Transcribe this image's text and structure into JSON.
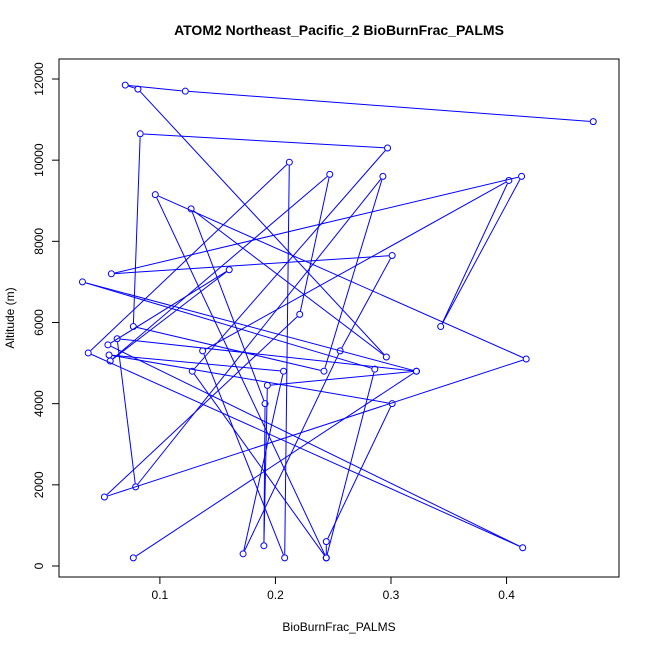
{
  "chart_data": {
    "type": "line",
    "title": "ATOM2 Northeast_Pacific_2 BioBurnFrac_PALMS",
    "xlabel": "BioBurnFrac_PALMS",
    "ylabel": "Altitude (m)",
    "xlim": [
      0.03,
      0.48
    ],
    "ylim": [
      0,
      12000
    ],
    "xticks": [
      "0.1",
      "0.2",
      "0.3",
      "0.4"
    ],
    "yticks": [
      "0",
      "2000",
      "4000",
      "6000",
      "8000",
      "10000",
      "12000"
    ],
    "grid": false,
    "legend": "none",
    "series": [
      {
        "color": "#0000ff",
        "marker": "open-circle",
        "x": [
          0.475,
          0.122,
          0.07,
          0.081,
          0.296,
          0.127,
          0.191,
          0.19,
          0.193,
          0.322,
          0.063,
          0.079,
          0.293,
          0.242,
          0.077,
          0.083,
          0.297,
          0.128,
          0.244,
          0.096,
          0.417,
          0.052,
          0.221,
          0.247,
          0.057,
          0.16,
          0.055,
          0.414,
          0.038,
          0.212,
          0.208,
          0.137,
          0.402,
          0.343,
          0.413,
          0.058,
          0.301,
          0.256,
          0.172,
          0.207,
          0.056,
          0.301,
          0.244,
          0.244,
          0.286,
          0.033,
          0.322,
          0.077
        ],
        "y": [
          10950,
          11700,
          11850,
          11750,
          5150,
          8800,
          4000,
          500,
          4450,
          4800,
          5600,
          1950,
          9600,
          4800,
          5900,
          10650,
          10300,
          4800,
          200,
          9150,
          5100,
          1700,
          6200,
          9650,
          5050,
          7300,
          5450,
          450,
          5250,
          9950,
          200,
          5300,
          9500,
          5900,
          9600,
          7200,
          7650,
          5300,
          300,
          4800,
          5200,
          4000,
          600,
          200,
          4850,
          7000,
          4800,
          200
        ]
      }
    ]
  }
}
